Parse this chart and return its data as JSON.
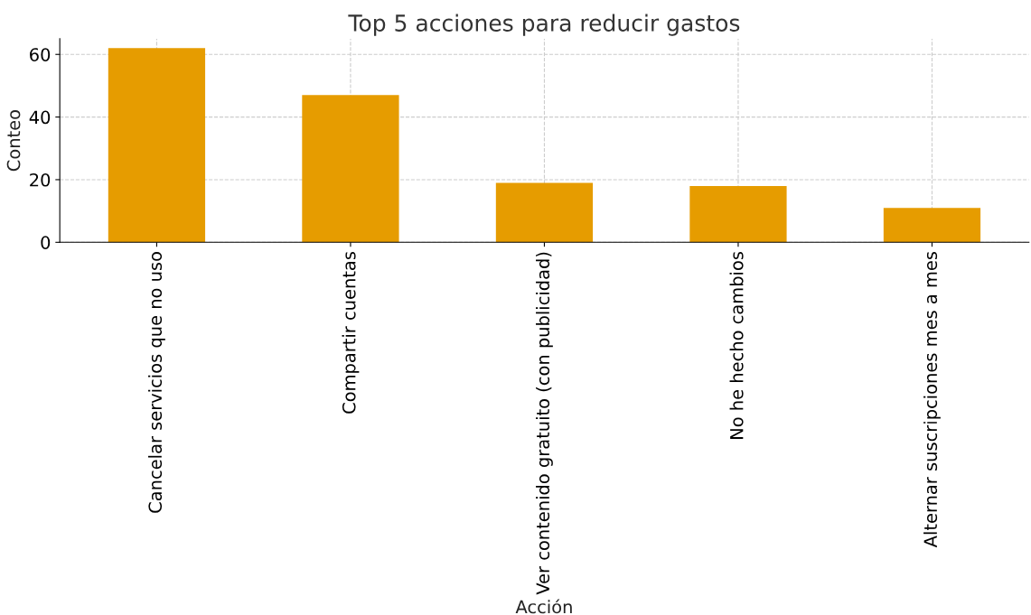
{
  "chart_data": {
    "type": "bar",
    "title": "Top 5 acciones para reducir gastos",
    "xlabel": "Acción",
    "ylabel": "Conteo",
    "categories": [
      "Cancelar servicios que no uso",
      "Compartir cuentas",
      "Ver contenido gratuito (con publicidad)",
      "No he hecho cambios",
      "Alternar suscripciones mes a mes"
    ],
    "values": [
      62,
      47,
      19,
      18,
      11
    ],
    "color": "#e69c00",
    "ylim": [
      0,
      65
    ],
    "yticks": [
      0,
      20,
      40,
      60
    ],
    "grid": true,
    "legend": false
  }
}
